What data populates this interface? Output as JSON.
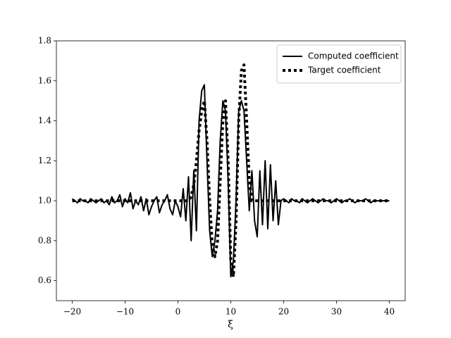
{
  "chart_data": {
    "type": "line",
    "xlabel": "ξ",
    "xlim": [
      -23,
      43
    ],
    "ylim": [
      0.5,
      1.8
    ],
    "xticks": [
      {
        "value": -20,
        "label": "−20"
      },
      {
        "value": -10,
        "label": "−10"
      },
      0,
      10,
      20,
      30,
      40
    ],
    "yticks": [
      0.6,
      0.8,
      {
        "value": 1.0,
        "label": "1.0"
      },
      1.2,
      1.4,
      1.6,
      1.8
    ],
    "legend": "upper right",
    "x": [
      -20,
      -19.5,
      -19,
      -18.5,
      -18,
      -17.5,
      -17,
      -16.5,
      -16,
      -15.5,
      -15,
      -14.5,
      -14,
      -13.5,
      -13,
      -12.5,
      -12,
      -11.5,
      -11,
      -10.5,
      -10,
      -9.5,
      -9,
      -8.5,
      -8,
      -7.5,
      -7,
      -6.5,
      -6,
      -5.5,
      -5,
      -4.5,
      -4,
      -3.5,
      -3,
      -2.5,
      -2,
      -1.5,
      -1,
      -0.5,
      0,
      0.5,
      1,
      1.5,
      2,
      2.5,
      3,
      3.5,
      4,
      4.5,
      5,
      5.5,
      6,
      6.5,
      7,
      7.5,
      8,
      8.5,
      9,
      9.5,
      10,
      10.5,
      11,
      11.5,
      12,
      12.5,
      13,
      13.5,
      14,
      14.5,
      15,
      15.5,
      16,
      16.5,
      17,
      17.5,
      18,
      18.5,
      19,
      19.5,
      20,
      20.5,
      21,
      21.5,
      22,
      22.5,
      23,
      23.5,
      24,
      24.5,
      25,
      25.5,
      26,
      26.5,
      27,
      27.5,
      28,
      28.5,
      29,
      29.5,
      30,
      30.5,
      31,
      31.5,
      32,
      32.5,
      33,
      33.5,
      34,
      34.5,
      35,
      35.5,
      36,
      36.5,
      37,
      37.5,
      38,
      38.5,
      39,
      39.5,
      40
    ],
    "series": [
      {
        "name": "Computed coefficient",
        "color": "#000000",
        "linestyle": "solid",
        "values": [
          1.01,
          1.0,
          0.99,
          1.01,
          1.0,
          1.0,
          0.99,
          1.01,
          1.0,
          0.99,
          1.0,
          1.01,
          0.99,
          1.0,
          0.98,
          1.02,
          0.99,
          1.0,
          1.03,
          0.97,
          1.01,
          0.99,
          1.04,
          0.96,
          1.0,
          0.98,
          1.02,
          0.95,
          1.01,
          0.93,
          0.97,
          1.0,
          1.02,
          0.94,
          0.98,
          1.0,
          1.03,
          0.96,
          0.93,
          1.0,
          0.97,
          0.92,
          1.06,
          0.9,
          1.12,
          0.8,
          1.15,
          0.85,
          1.4,
          1.55,
          1.58,
          1.2,
          0.85,
          0.72,
          0.8,
          0.95,
          1.3,
          1.5,
          1.45,
          1.1,
          0.62,
          0.7,
          1.0,
          1.45,
          1.5,
          1.45,
          1.2,
          0.95,
          1.15,
          0.9,
          0.82,
          1.15,
          0.88,
          1.2,
          0.86,
          1.18,
          0.9,
          1.1,
          0.88,
          1.0,
          1.01,
          1.0,
          0.99,
          1.01,
          1.0,
          1.0,
          0.99,
          1.01,
          1.0,
          0.99,
          1.0,
          1.01,
          1.0,
          0.99,
          1.0,
          1.01,
          1.0,
          1.0,
          0.99,
          1.0,
          1.01,
          1.0,
          0.99,
          1.0,
          1.0,
          1.01,
          1.0,
          0.99,
          1.0,
          1.0,
          1.0,
          1.01,
          1.0,
          0.99,
          1.0,
          1.0,
          1.0,
          1.0,
          1.0,
          1.0,
          1.0
        ]
      },
      {
        "name": "Target coefficient",
        "color": "#000000",
        "linestyle": "dotted",
        "values": [
          1.0,
          1.0,
          1.0,
          1.0,
          1.0,
          1.0,
          1.0,
          1.0,
          1.0,
          1.0,
          1.0,
          1.0,
          1.0,
          1.0,
          1.0,
          1.0,
          1.0,
          1.0,
          1.0,
          1.0,
          1.0,
          1.0,
          1.0,
          1.0,
          1.0,
          1.0,
          1.0,
          1.0,
          1.0,
          1.0,
          1.0,
          1.0,
          1.0,
          1.0,
          1.0,
          1.0,
          1.0,
          1.0,
          1.0,
          1.0,
          1.0,
          1.0,
          1.0,
          1.0,
          1.0,
          1.02,
          1.08,
          1.2,
          1.35,
          1.45,
          1.5,
          1.3,
          1.0,
          0.78,
          0.72,
          0.8,
          1.1,
          1.4,
          1.5,
          1.2,
          0.7,
          0.62,
          0.9,
          1.4,
          1.65,
          1.68,
          1.4,
          1.1,
          1.0,
          1.0,
          1.0,
          1.0,
          1.0,
          1.0,
          1.0,
          1.0,
          1.0,
          1.0,
          1.0,
          1.0,
          1.0,
          1.0,
          1.0,
          1.0,
          1.0,
          1.0,
          1.0,
          1.0,
          1.0,
          1.0,
          1.0,
          1.0,
          1.0,
          1.0,
          1.0,
          1.0,
          1.0,
          1.0,
          1.0,
          1.0,
          1.0,
          1.0,
          1.0,
          1.0,
          1.0,
          1.0,
          1.0,
          1.0,
          1.0,
          1.0,
          1.0,
          1.0,
          1.0,
          1.0,
          1.0,
          1.0,
          1.0,
          1.0,
          1.0,
          1.0,
          1.0
        ]
      }
    ]
  }
}
